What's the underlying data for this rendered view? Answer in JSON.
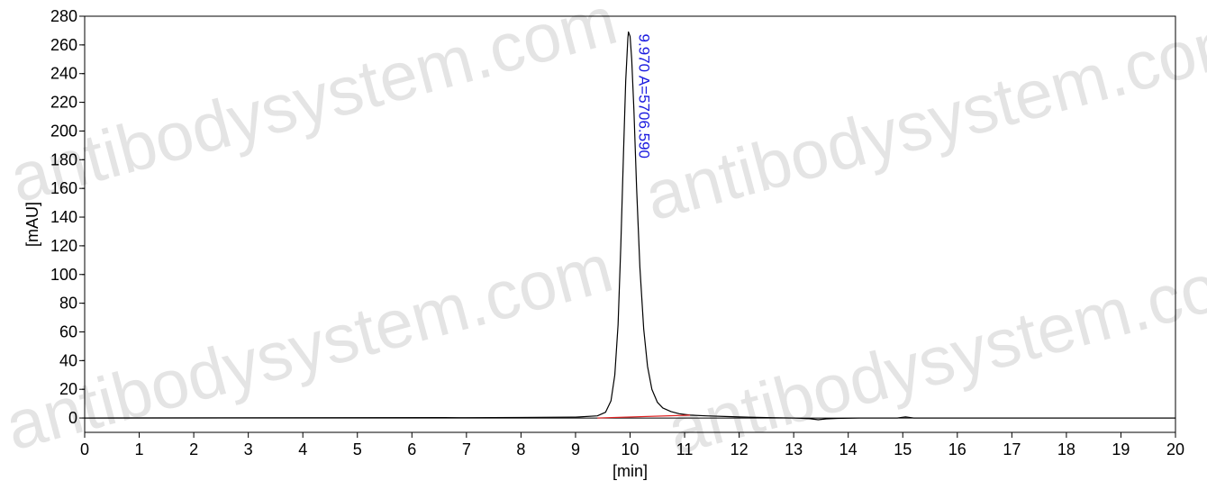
{
  "chart_data": {
    "type": "line",
    "title": "",
    "xlabel": "[min]",
    "ylabel": "[mAU]",
    "xlim": [
      0,
      20
    ],
    "ylim": [
      -10,
      280
    ],
    "x_ticks": [
      "0",
      "1",
      "2",
      "3",
      "4",
      "5",
      "6",
      "7",
      "8",
      "9",
      "10",
      "11",
      "12",
      "13",
      "14",
      "15",
      "16",
      "17",
      "18",
      "19",
      "20"
    ],
    "y_ticks": [
      "0",
      "20",
      "40",
      "60",
      "80",
      "100",
      "120",
      "140",
      "160",
      "180",
      "200",
      "220",
      "240",
      "260",
      "280"
    ],
    "grid": false,
    "series": [
      {
        "color": "#000000",
        "x": [
          0,
          6.6,
          7.0,
          8.0,
          9.0,
          9.4,
          9.55,
          9.65,
          9.72,
          9.78,
          9.83,
          9.88,
          9.92,
          9.96,
          9.97,
          10.0,
          10.03,
          10.07,
          10.12,
          10.18,
          10.25,
          10.32,
          10.4,
          10.5,
          10.6,
          10.75,
          10.9,
          11.1,
          11.4,
          11.8,
          12.2,
          12.6,
          13.0,
          13.3,
          13.45,
          13.6,
          13.8,
          14.2,
          14.9,
          15.05,
          15.2,
          15.5,
          16,
          20
        ],
        "y": [
          0,
          0.3,
          0.2,
          0.4,
          0.6,
          1.5,
          4,
          12,
          30,
          65,
          120,
          185,
          235,
          265,
          269,
          266,
          250,
          215,
          160,
          105,
          62,
          36,
          20,
          11,
          7,
          4.5,
          3,
          2,
          1.5,
          1,
          0.5,
          0.2,
          0,
          -0.5,
          -1.2,
          -0.6,
          -0.3,
          0,
          0,
          0.8,
          0,
          0,
          0,
          0
        ]
      },
      {
        "color": "#e02020",
        "x": [
          9.4,
          11.1
        ],
        "y": [
          0,
          2
        ]
      }
    ],
    "annotations": [
      {
        "text": "9.970 A=5706.590",
        "x": 9.97,
        "y": 269,
        "color": "#1a1adf"
      }
    ]
  },
  "watermark": {
    "text": "antibodysystem.com"
  }
}
